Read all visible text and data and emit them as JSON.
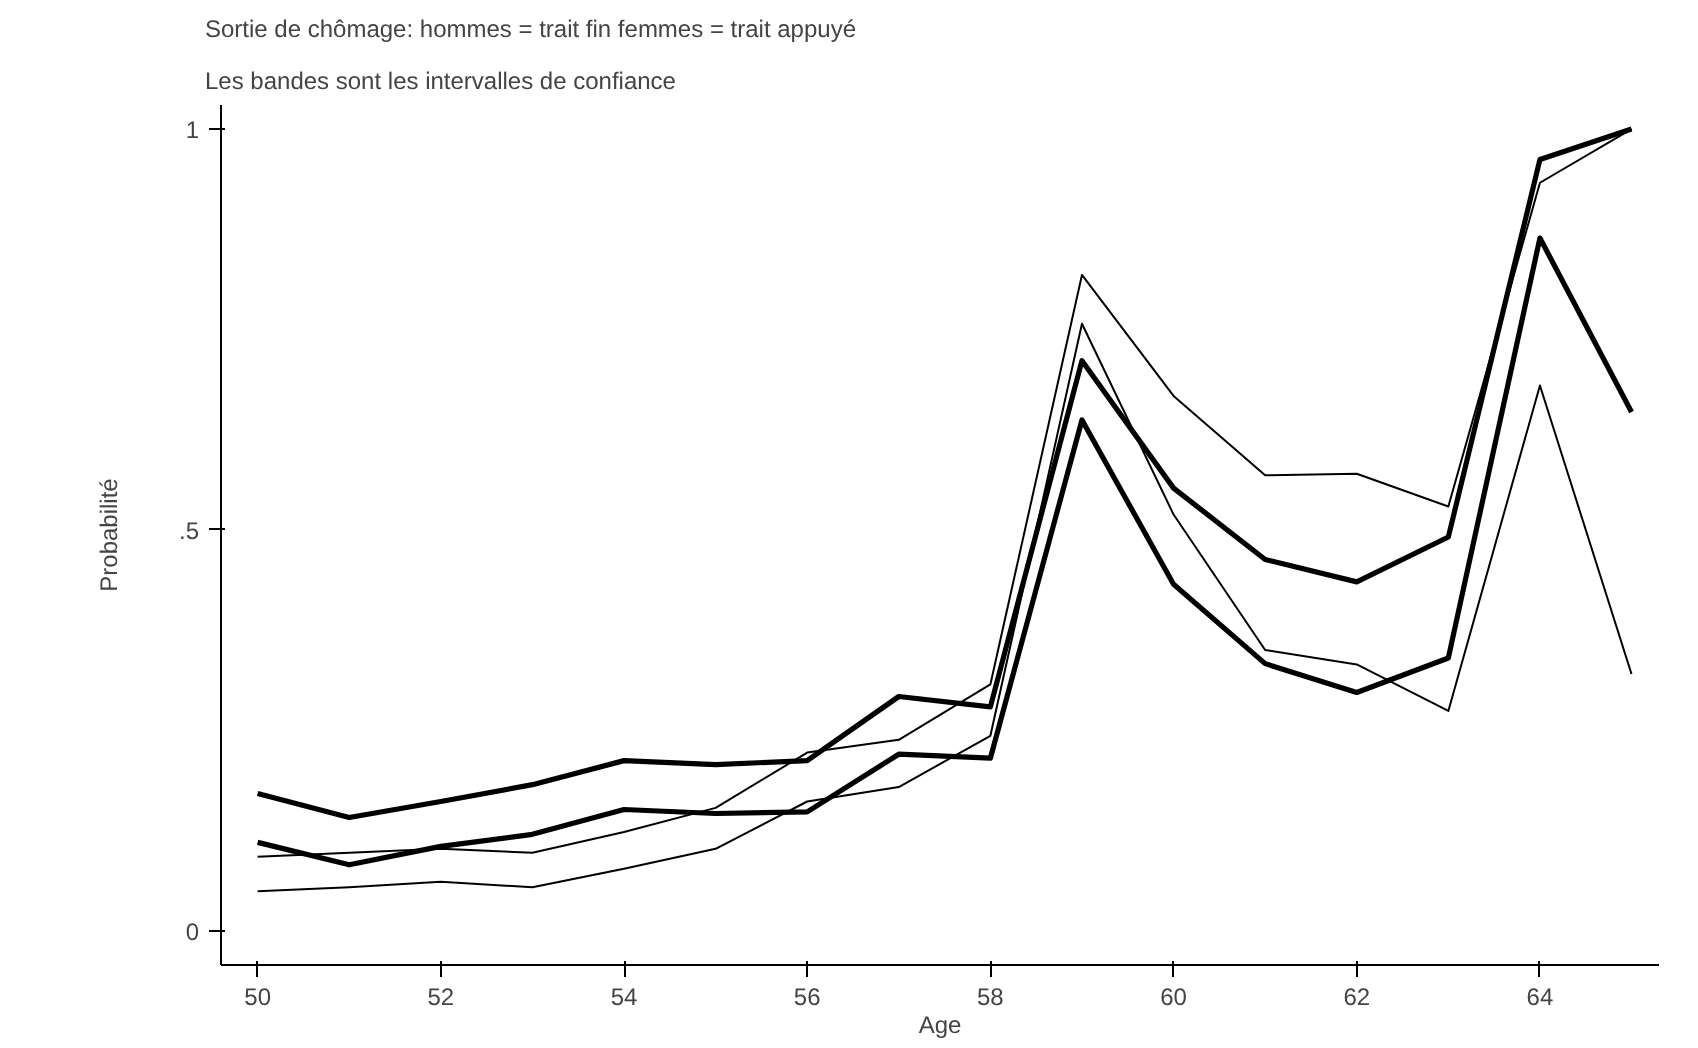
{
  "chart_data": {
    "type": "line",
    "title": "Sortie de chômage: hommes = trait fin femmes = trait appuyé",
    "subtitle": "Les bandes sont les intervalles de confiance",
    "xlabel": "Age",
    "ylabel": "Probabilité",
    "x": [
      50,
      51,
      52,
      53,
      54,
      55,
      56,
      57,
      58,
      59,
      60,
      61,
      62,
      63,
      64,
      65
    ],
    "xlim": [
      49.6,
      65.3
    ],
    "ylim": [
      -0.043,
      1.03
    ],
    "xticks": [
      50,
      52,
      54,
      56,
      58,
      60,
      62,
      64
    ],
    "yticks": [
      {
        "value": 0,
        "label": "0"
      },
      {
        "value": 0.5,
        "label": ".5"
      },
      {
        "value": 1,
        "label": "1"
      }
    ],
    "grid": false,
    "marker": "none",
    "line_style": "solid",
    "series": [
      {
        "color": "#000000",
        "values": [
          0.171,
          0.141,
          0.161,
          0.182,
          0.212,
          0.207,
          0.212,
          0.292,
          0.279,
          0.711,
          0.552,
          0.463,
          0.435,
          0.491,
          0.962,
          1.0
        ]
      },
      {
        "color": "#000000",
        "values": [
          0.11,
          0.082,
          0.105,
          0.12,
          0.151,
          0.146,
          0.148,
          0.22,
          0.215,
          0.637,
          0.432,
          0.333,
          0.297,
          0.34,
          0.864,
          0.647
        ]
      },
      {
        "color": "#000000",
        "values": [
          0.092,
          0.097,
          0.102,
          0.097,
          0.123,
          0.153,
          0.222,
          0.238,
          0.307,
          0.818,
          0.667,
          0.568,
          0.57,
          0.529,
          0.933,
          1.0
        ]
      },
      {
        "color": "#000000",
        "values": [
          0.049,
          0.054,
          0.061,
          0.054,
          0.077,
          0.102,
          0.161,
          0.179,
          0.243,
          0.757,
          0.519,
          0.35,
          0.332,
          0.274,
          0.68,
          0.32
        ]
      }
    ]
  }
}
